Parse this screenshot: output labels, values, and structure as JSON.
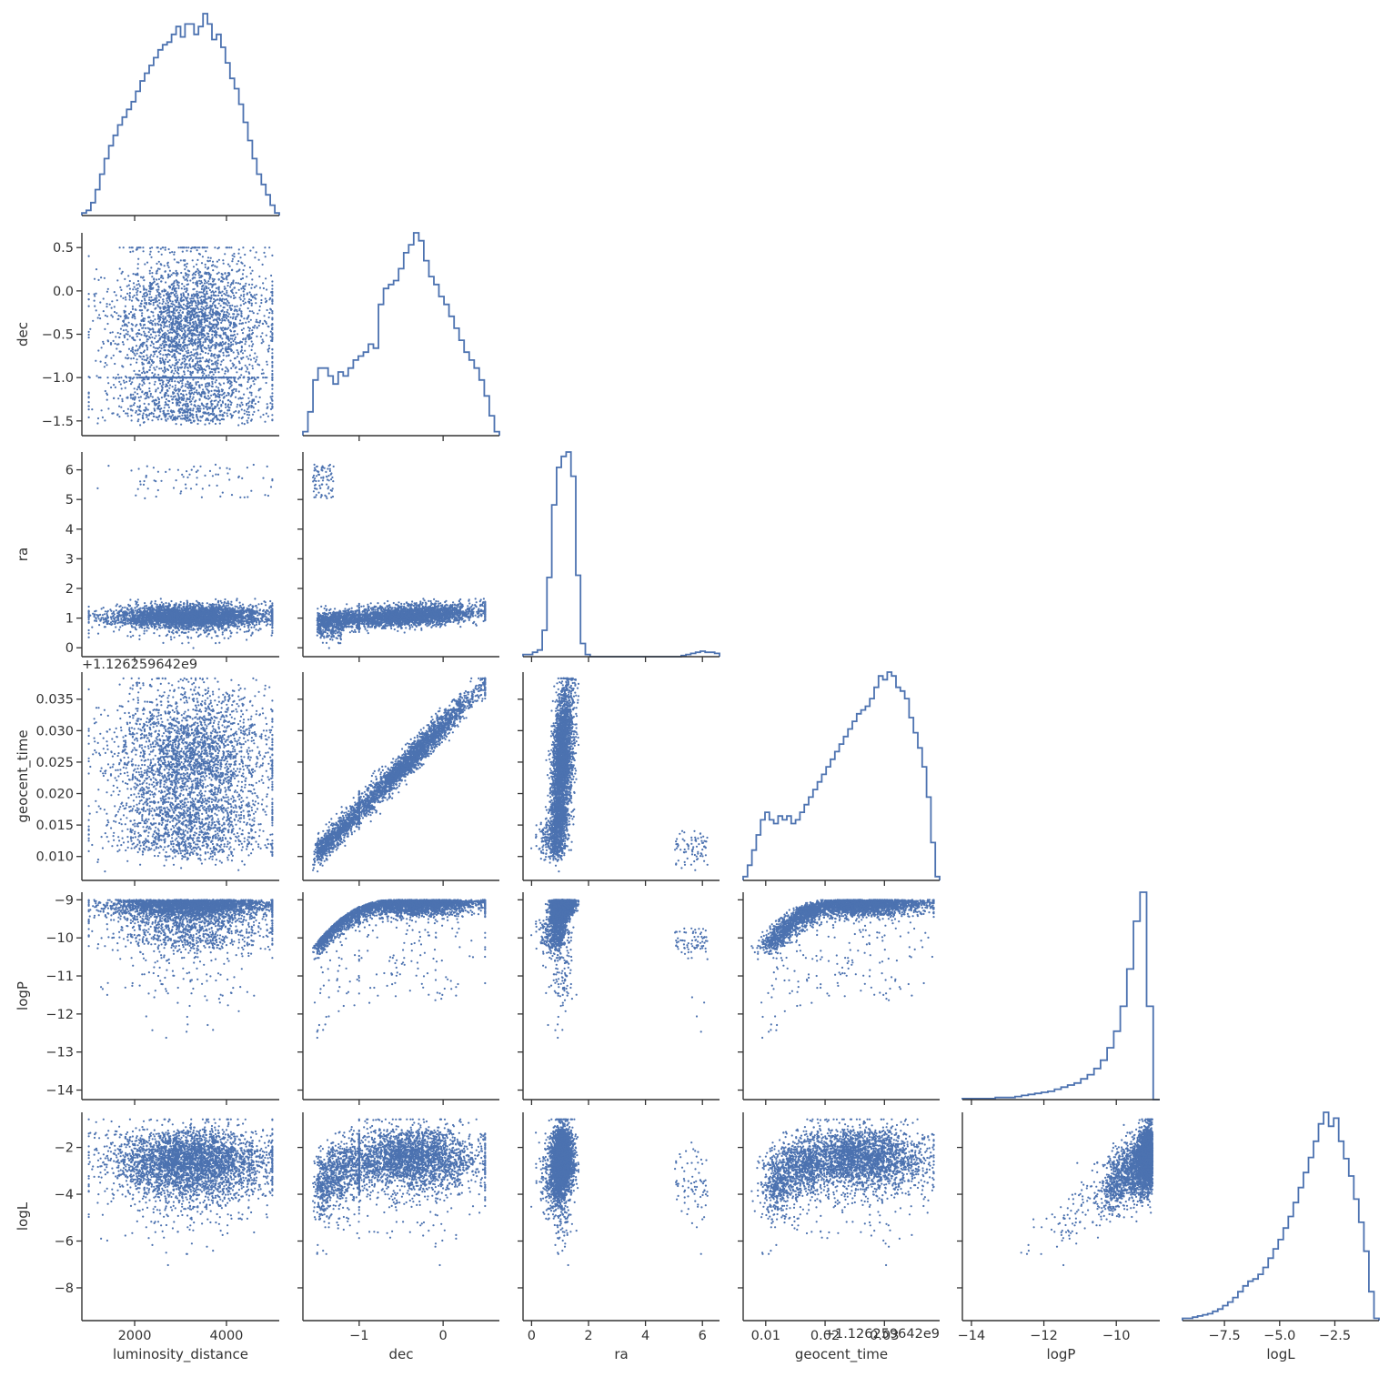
{
  "colors": {
    "series": "#4c72b0",
    "axis": "#333333",
    "background": "#ffffff"
  },
  "chart_data": {
    "type": "scatter",
    "layout": "corner pair plot (lower-triangle scatter matrix with step histograms on the diagonal)",
    "series_color": "#4c72b0",
    "grid": false,
    "variables": [
      {
        "name": "luminosity_distance",
        "xlabel": "luminosity_distance",
        "ylabel": "",
        "range": [
          850,
          5150
        ],
        "ticks": [
          2000,
          4000
        ],
        "tick_labels": [
          "2000",
          "4000"
        ],
        "offset_text": ""
      },
      {
        "name": "dec",
        "xlabel": "dec",
        "ylabel": "dec",
        "range": [
          -1.67,
          0.67
        ],
        "ticks": [
          -1.5,
          -1.0,
          -0.5,
          0.0,
          0.5
        ],
        "tick_labels": [
          "−1.5",
          "−1.0",
          "−0.5",
          "0.0",
          "0.5"
        ],
        "x_ticks": [
          -1,
          0
        ],
        "x_tick_labels": [
          "−1",
          "0"
        ],
        "offset_text": ""
      },
      {
        "name": "ra",
        "xlabel": "ra",
        "ylabel": "ra",
        "range": [
          -0.3,
          6.6
        ],
        "ticks": [
          0,
          1,
          2,
          3,
          4,
          5,
          6
        ],
        "tick_labels": [
          "0",
          "1",
          "2",
          "3",
          "4",
          "5",
          "6"
        ],
        "x_ticks": [
          0,
          2,
          4,
          6
        ],
        "x_tick_labels": [
          "0",
          "2",
          "4",
          "6"
        ],
        "offset_text": ""
      },
      {
        "name": "geocent_time",
        "xlabel": "geocent_time",
        "ylabel": "geocent_time",
        "range": [
          0.0062,
          0.0393
        ],
        "ticks": [
          0.01,
          0.015,
          0.02,
          0.025,
          0.03,
          0.035
        ],
        "tick_labels": [
          "0.010",
          "0.015",
          "0.020",
          "0.025",
          "0.030",
          "0.035"
        ],
        "x_ticks": [
          0.01,
          0.02,
          0.03
        ],
        "x_tick_labels": [
          "0.01",
          "0.02",
          "0.03"
        ],
        "offset_text": "+1.126259642e9"
      },
      {
        "name": "logP",
        "xlabel": "logP",
        "ylabel": "logP",
        "range": [
          -14.25,
          -8.8
        ],
        "ticks": [
          -14,
          -13,
          -12,
          -11,
          -10,
          -9
        ],
        "tick_labels": [
          "−14",
          "−13",
          "−12",
          "−11",
          "−10",
          "−9"
        ],
        "x_ticks": [
          -14,
          -12,
          -10
        ],
        "x_tick_labels": [
          "−14",
          "−12",
          "−10"
        ],
        "offset_text": ""
      },
      {
        "name": "logL",
        "xlabel": "logL",
        "ylabel": "logL",
        "range": [
          -9.4,
          -0.5
        ],
        "ticks": [
          -8,
          -6,
          -4,
          -2
        ],
        "tick_labels": [
          "−8",
          "−6",
          "−4",
          "−2"
        ],
        "x_ticks": [
          -7.5,
          -5.0,
          -2.5
        ],
        "x_tick_labels": [
          "−7.5",
          "−5.0",
          "−2.5"
        ],
        "offset_text": ""
      }
    ],
    "histograms": [
      {
        "variable": "luminosity_distance",
        "counts": [
          1,
          2,
          5,
          10,
          16,
          22,
          27,
          31,
          35,
          38,
          41,
          44,
          48,
          52,
          55,
          58,
          61,
          64,
          66,
          67,
          70,
          73,
          69,
          74,
          74,
          70,
          73,
          78,
          74,
          68,
          70,
          65,
          59,
          53,
          49,
          43,
          36,
          29,
          22,
          16,
          12,
          8,
          4,
          1
        ]
      },
      {
        "variable": "dec",
        "counts": [
          1,
          6,
          14,
          17,
          17,
          15,
          13,
          16,
          15,
          17,
          19,
          20,
          21,
          23,
          22,
          33,
          37,
          38,
          39,
          42,
          46,
          48,
          51,
          49,
          44,
          40,
          38,
          35,
          33,
          30,
          27,
          24,
          21,
          19,
          17,
          14,
          10,
          5,
          1
        ]
      },
      {
        "variable": "ra",
        "counts": [
          0.1,
          0.1,
          0.2,
          0.3,
          1.2,
          3.6,
          6.9,
          8.6,
          9.1,
          9.3,
          8.2,
          3.7,
          0.6,
          0.1,
          0,
          0,
          0,
          0,
          0,
          0,
          0,
          0,
          0,
          0,
          0,
          0,
          0,
          0,
          0,
          0,
          0,
          0,
          0,
          0.05,
          0.1,
          0.15,
          0.2,
          0.25,
          0.2,
          0.2,
          0.15
        ]
      },
      {
        "variable": "geocent_time",
        "counts": [
          1,
          4,
          8,
          12,
          16,
          18,
          16,
          15,
          17,
          16,
          17,
          15,
          16,
          18,
          20,
          22,
          24,
          26,
          28,
          30,
          32,
          34,
          36,
          38,
          40,
          42,
          44,
          45,
          46,
          48,
          51,
          54,
          53,
          55,
          54,
          51,
          50,
          48,
          43,
          39,
          35,
          30,
          22,
          10,
          1
        ]
      },
      {
        "variable": "logP",
        "counts": [
          0.05,
          0.05,
          0.05,
          0.05,
          0.05,
          0.1,
          0.1,
          0.1,
          0.15,
          0.2,
          0.25,
          0.3,
          0.35,
          0.4,
          0.5,
          0.6,
          0.7,
          0.8,
          1.0,
          1.2,
          1.5,
          1.9,
          2.5,
          3.3,
          4.5,
          6.3,
          8.6,
          10.0,
          4.5,
          0
        ]
      },
      {
        "variable": "logL",
        "counts": [
          0.2,
          0.2,
          0.3,
          0.4,
          0.5,
          0.6,
          0.8,
          1.0,
          1.3,
          1.6,
          2.0,
          2.5,
          3.0,
          3.4,
          3.6,
          4.0,
          4.6,
          5.4,
          6.2,
          7.0,
          8.0,
          9.0,
          10.2,
          11.5,
          12.8,
          14.1,
          15.5,
          17.0,
          18.0,
          16.8,
          17.5,
          15.5,
          14.0,
          12.5,
          10.5,
          8.5,
          6.0,
          2.5,
          0.2
        ]
      }
    ],
    "scatter_description_of_distributions": {
      "luminosity_distance": "roughly uniform between 1000 and 5000 with a broad peak near 3300",
      "dec": "main mass from -1.5 to 0.5 peaking near -0.4",
      "ra": "main cluster 0.5 to 1.6, minor cluster 5.0 to 6.2 at low dec",
      "geocent_time": "tight linear relation with dec from 0.008 to 0.038",
      "logP": "concentrated near -9, tail to -14",
      "logL": "peaks near -2.3, tail to -9"
    }
  }
}
